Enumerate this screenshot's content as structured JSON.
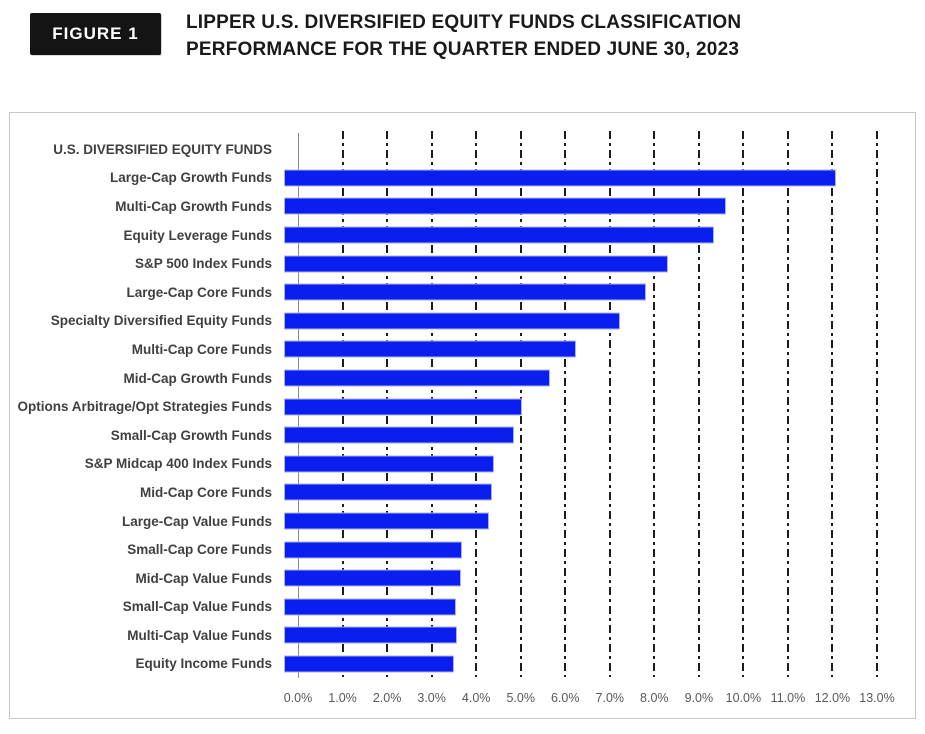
{
  "header": {
    "figure_label": "FIGURE 1",
    "title_line1": "LIPPER U.S. DIVERSIFIED EQUITY FUNDS CLASSIFICATION",
    "title_line2": "PERFORMANCE FOR THE QUARTER ENDED JUNE 30, 2023"
  },
  "chart_data": {
    "type": "bar",
    "orientation": "horizontal",
    "title": "LIPPER U.S. DIVERSIFIED EQUITY FUNDS CLASSIFICATION PERFORMANCE FOR THE QUARTER ENDED JUNE 30, 2023",
    "categories": [
      "U.S. DIVERSIFIED EQUITY FUNDS",
      "Large-Cap Growth Funds",
      "Multi-Cap Growth Funds",
      "Equity Leverage Funds",
      "S&P 500 Index Funds",
      "Large-Cap Core Funds",
      "Specialty Diversified Equity Funds",
      "Multi-Cap Core Funds",
      "Mid-Cap Growth Funds",
      "Options Arbitrage/Opt Strategies Funds",
      "Small-Cap Growth Funds",
      "S&P Midcap 400 Index Funds",
      "Mid-Cap Core Funds",
      "Large-Cap Value Funds",
      "Small-Cap Core Funds",
      "Mid-Cap Value Funds",
      "Small-Cap Value Funds",
      "Multi-Cap Value Funds",
      "Equity Income Funds"
    ],
    "values": [
      null,
      12.35,
      9.88,
      9.6,
      8.57,
      8.08,
      7.5,
      6.51,
      5.92,
      5.31,
      5.11,
      4.66,
      4.63,
      4.56,
      3.95,
      3.92,
      3.82,
      3.83,
      3.77
    ],
    "value_unit": "%",
    "x_tick_labels": [
      "0.0%",
      "1.0%",
      "2.0%",
      "3.0%",
      "4.0%",
      "5.0%",
      "6.0%",
      "7.0%",
      "8.0%",
      "9.0%",
      "10.0%",
      "11.0%",
      "12.0%",
      "13.0%"
    ],
    "xlim": [
      0,
      13
    ],
    "gridlines": "vertical dash-dot at each 1%",
    "legend": "none",
    "bar_color": "#0a1ef0"
  },
  "colors": {
    "bar": "#0a1ef0",
    "category_text": "#404040",
    "tick_text": "#595959",
    "panel_border": "#c8c8c8",
    "gridline": "#1c1c1c",
    "axis_line": "#8a8a8a",
    "badge_background": "#141414",
    "badge_text": "#ffffff",
    "title_text": "#1a1a1a"
  }
}
